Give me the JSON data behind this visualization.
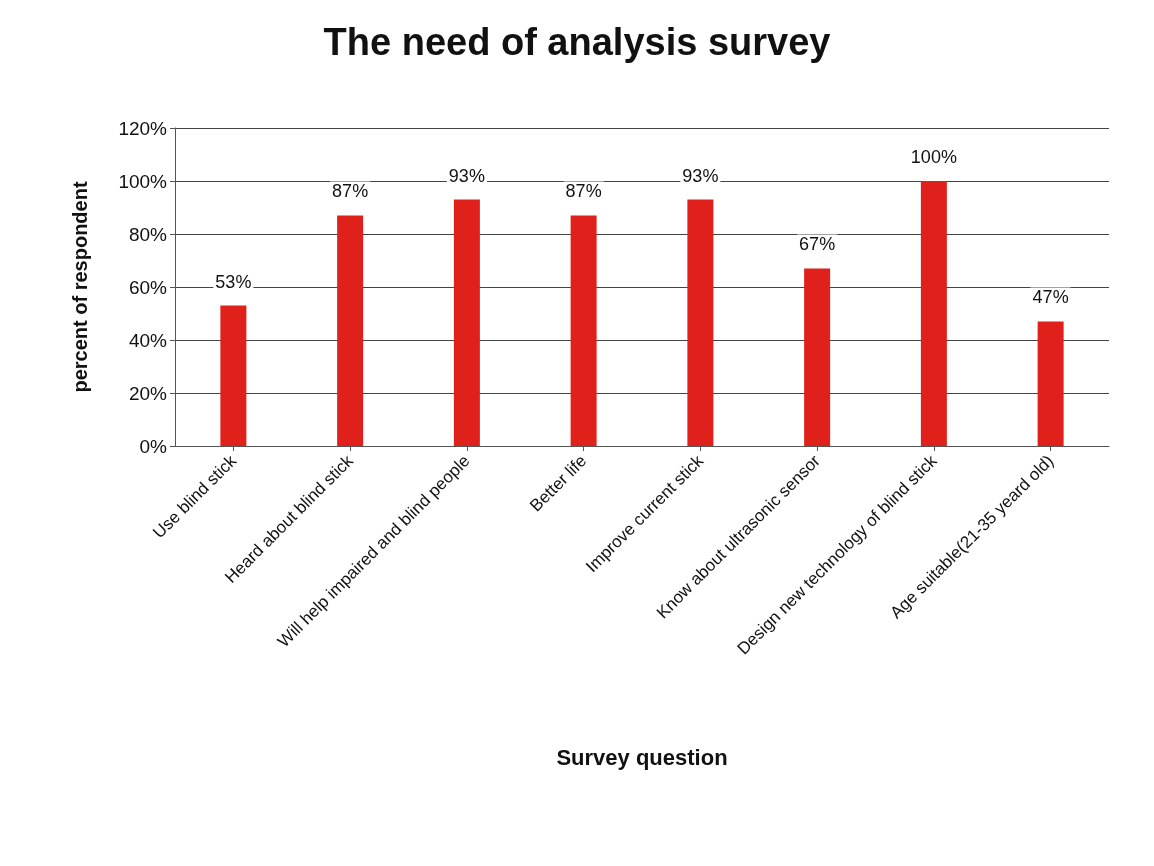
{
  "chart_data": {
    "type": "bar",
    "title": "The need of analysis survey",
    "xlabel": "Survey question",
    "ylabel": "percent of respondent",
    "categories": [
      "Use blind stick",
      "Heard about blind stick",
      "Will help impaired and blind people",
      "Better life",
      "Improve current stick",
      "Know about ultrasonic sensor",
      "Design new technology of blind stick",
      "Age suitable(21-35 yeard old)"
    ],
    "values": [
      53,
      87,
      93,
      87,
      93,
      67,
      100,
      47
    ],
    "value_labels": [
      "53%",
      "87%",
      "93%",
      "87%",
      "93%",
      "67%",
      "100%",
      "47%"
    ],
    "color": "#e0201b",
    "ylim": [
      0,
      120
    ],
    "yticks": [
      {
        "value": 0,
        "label": "0%"
      },
      {
        "value": 20,
        "label": "20%"
      },
      {
        "value": 40,
        "label": "40%"
      },
      {
        "value": 60,
        "label": "60%"
      },
      {
        "value": 80,
        "label": "80%"
      },
      {
        "value": 100,
        "label": "100%"
      },
      {
        "value": 120,
        "label": "120%"
      }
    ],
    "grid": "y"
  }
}
